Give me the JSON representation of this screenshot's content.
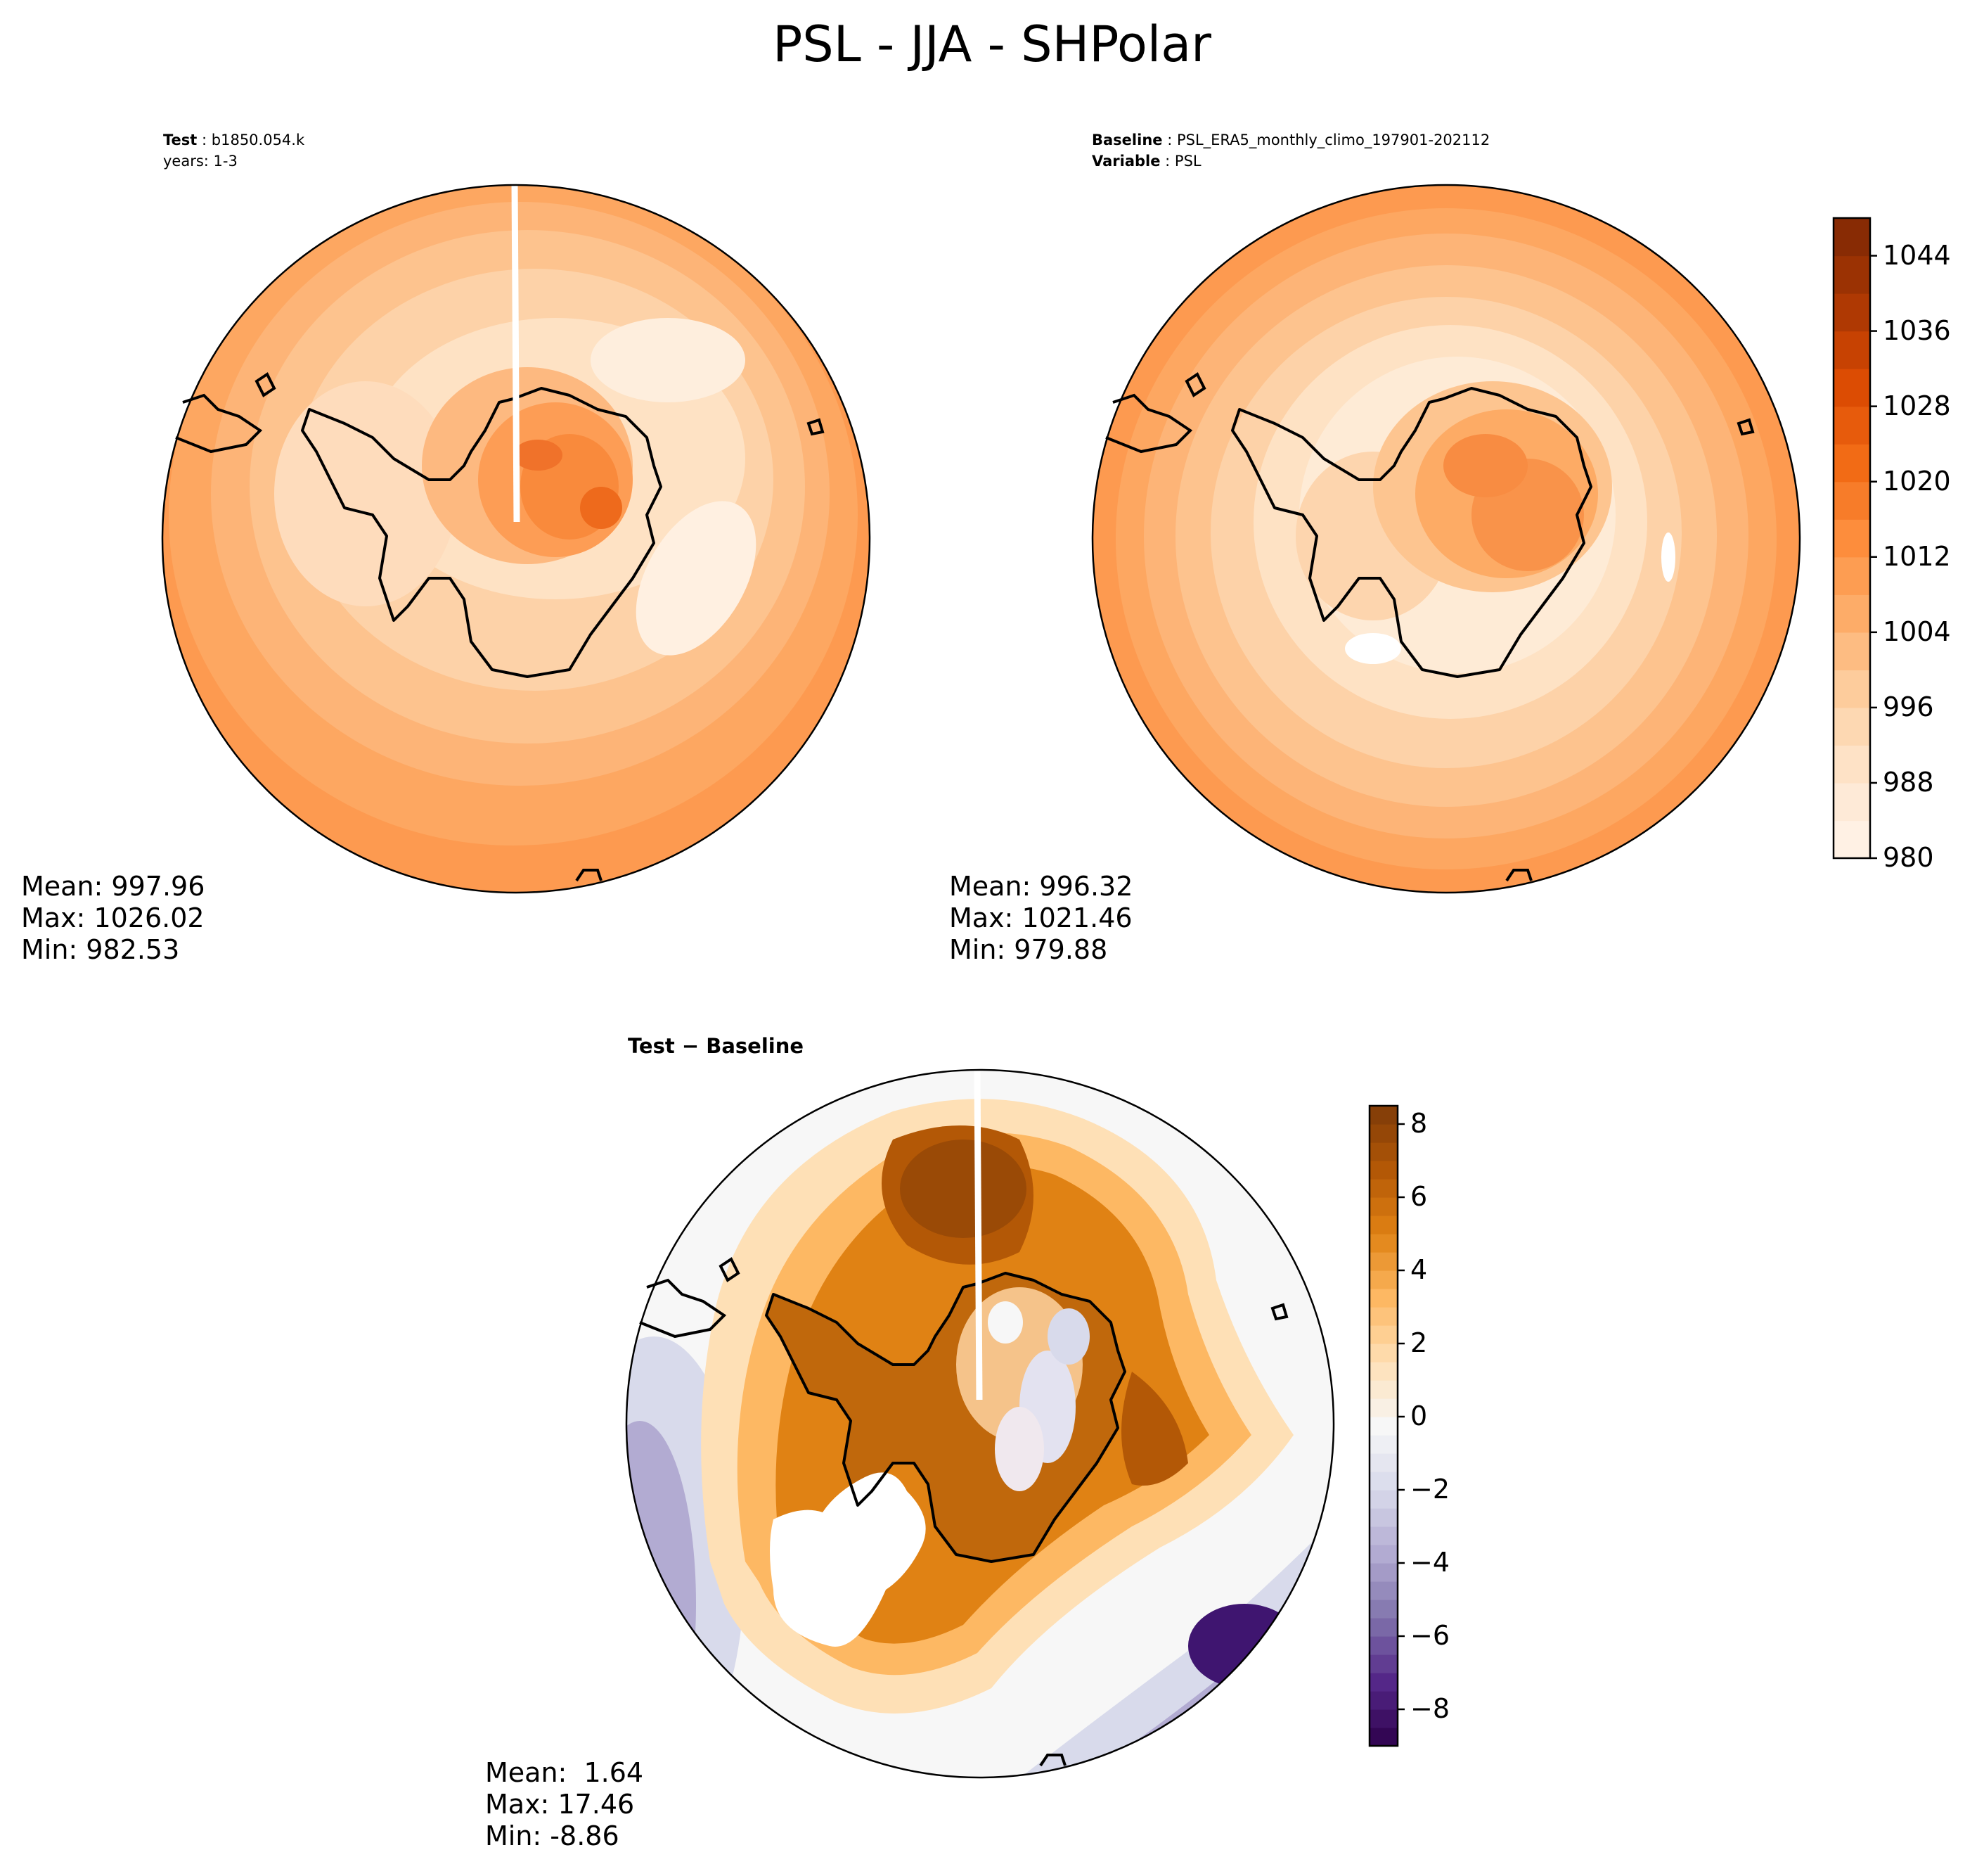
{
  "figure": {
    "title": "PSL - JJA - SHPolar"
  },
  "panels": {
    "test": {
      "label_bold": "Test",
      "name": "b1850.054.k",
      "years": "years: 1-3",
      "mean": "Mean: 997.96",
      "max": "Max: 1026.02",
      "min": "Min: 982.53"
    },
    "baseline": {
      "label_bold": "Baseline",
      "name": "PSL_ERA5_monthly_climo_197901-202112",
      "variable_bold": "Variable",
      "variable": "PSL",
      "mean": "Mean: 996.32",
      "max": "Max: 1021.46",
      "min": "Min: 979.88"
    },
    "diff": {
      "label": "Test − Baseline",
      "mean": "Mean:  1.64",
      "max": "Max: 17.46",
      "min": "Min: -8.86"
    }
  },
  "colors": {
    "orange_scale": [
      "#fff5eb",
      "#fee6ce",
      "#fdd0a2",
      "#fdae6b",
      "#fd8d3c",
      "#f16913",
      "#d94801",
      "#a63603",
      "#7f2704"
    ],
    "puor_scale": [
      "#2d004b",
      "#542788",
      "#8073ac",
      "#b2abd2",
      "#d8daeb",
      "#f7f7f7",
      "#fee0b6",
      "#fdb863",
      "#e08214",
      "#b35806",
      "#7f3b08"
    ],
    "coast": "#000000"
  },
  "chart_data": [
    {
      "type": "heatmap",
      "panel": "test",
      "projection": "South Polar Stereographic",
      "colormap": "Oranges",
      "levels_range": [
        980,
        1048
      ],
      "stats": {
        "mean": 997.96,
        "max": 1026.02,
        "min": 982.53
      }
    },
    {
      "type": "heatmap",
      "panel": "baseline",
      "projection": "South Polar Stereographic",
      "colormap": "Oranges",
      "levels_range": [
        980,
        1048
      ],
      "stats": {
        "mean": 996.32,
        "max": 1021.46,
        "min": 979.88
      },
      "colorbar": {
        "ticks": [
          980,
          988,
          996,
          1004,
          1012,
          1020,
          1028,
          1036,
          1044
        ],
        "tick_labels": [
          "980",
          "988",
          "996",
          "1004",
          "1012",
          "1020",
          "1028",
          "1036",
          "1044"
        ],
        "range": [
          980,
          1048
        ]
      }
    },
    {
      "type": "heatmap",
      "panel": "diff",
      "projection": "South Polar Stereographic",
      "colormap": "PuOr_r",
      "levels_range": [
        -9,
        8.5
      ],
      "stats": {
        "mean": 1.64,
        "max": 17.46,
        "min": -8.86
      },
      "colorbar": {
        "ticks": [
          -8,
          -6,
          -4,
          -2,
          0,
          2,
          4,
          6,
          8
        ],
        "tick_labels": [
          "−8",
          "−6",
          "−4",
          "−2",
          "0",
          "2",
          "4",
          "6",
          "8"
        ],
        "range": [
          -9,
          8.5
        ]
      }
    }
  ]
}
